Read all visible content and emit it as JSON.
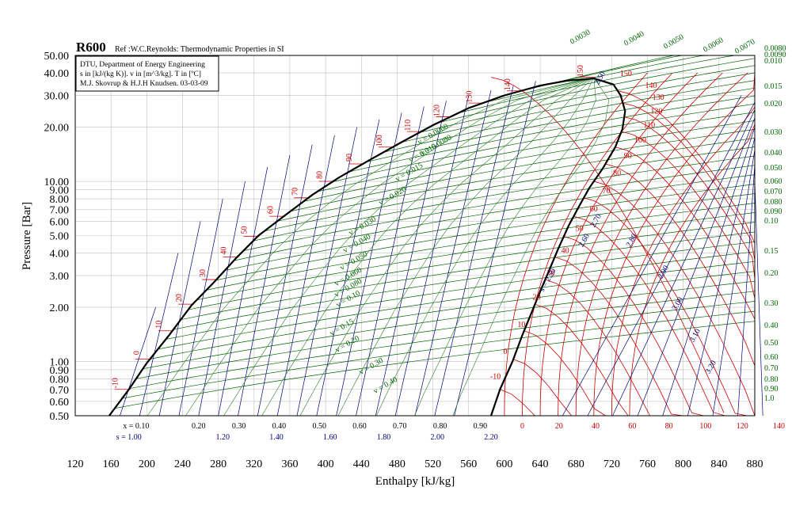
{
  "chart_data": {
    "type": "line",
    "title": "R600",
    "subtitle": "Ref :W.C.Reynolds: Thermodynamic Properties in SI",
    "info_lines": [
      "DTU, Department of Energy Engineering",
      "s in [kJ/(kg K)]. v in [m^3/kg]. T in [ºC]",
      "M.J. Skovrup & H.J.H Knudsen. 03-03-09"
    ],
    "xlabel": "Enthalpy [kJ/kg]",
    "ylabel": "Pressure [Bar]",
    "xlim": [
      120,
      880
    ],
    "ylim": [
      0.5,
      50
    ],
    "y_scale": "log",
    "x_ticks": [
      120,
      160,
      200,
      240,
      280,
      320,
      360,
      400,
      440,
      480,
      520,
      560,
      600,
      640,
      680,
      720,
      760,
      800,
      840,
      880
    ],
    "y_ticks": [
      {
        "v": 0.5,
        "label": "0.50"
      },
      {
        "v": 0.6,
        "label": "0.60"
      },
      {
        "v": 0.7,
        "label": "0.70"
      },
      {
        "v": 0.8,
        "label": "0.80"
      },
      {
        "v": 0.9,
        "label": "0.90"
      },
      {
        "v": 1.0,
        "label": "1.00"
      },
      {
        "v": 2.0,
        "label": "2.00"
      },
      {
        "v": 3.0,
        "label": "3.00"
      },
      {
        "v": 4.0,
        "label": "4.00"
      },
      {
        "v": 5.0,
        "label": "5.00"
      },
      {
        "v": 6.0,
        "label": "6.00"
      },
      {
        "v": 7.0,
        "label": "7.00"
      },
      {
        "v": 8.0,
        "label": "8.00"
      },
      {
        "v": 9.0,
        "label": "9.00"
      },
      {
        "v": 10.0,
        "label": "10.00"
      },
      {
        "v": 20.0,
        "label": "20.00"
      },
      {
        "v": 30.0,
        "label": "30.00"
      },
      {
        "v": 40.0,
        "label": "40.00"
      },
      {
        "v": 50.0,
        "label": "50.00"
      }
    ],
    "grid": true,
    "saturation_liquid": [
      {
        "h": 158,
        "p": 0.5
      },
      {
        "h": 180,
        "p": 0.7
      },
      {
        "h": 200,
        "p": 0.98
      },
      {
        "h": 225,
        "p": 1.4
      },
      {
        "h": 250,
        "p": 2.05
      },
      {
        "h": 275,
        "p": 2.75
      },
      {
        "h": 300,
        "p": 3.75
      },
      {
        "h": 325,
        "p": 5.0
      },
      {
        "h": 355,
        "p": 6.5
      },
      {
        "h": 385,
        "p": 8.4
      },
      {
        "h": 415,
        "p": 10.5
      },
      {
        "h": 450,
        "p": 13.2
      },
      {
        "h": 485,
        "p": 16.5
      },
      {
        "h": 520,
        "p": 20.5
      },
      {
        "h": 560,
        "p": 25.5
      },
      {
        "h": 600,
        "p": 30.0
      },
      {
        "h": 640,
        "p": 34.0
      },
      {
        "h": 670,
        "p": 36.2
      },
      {
        "h": 700,
        "p": 37.3
      }
    ],
    "saturation_vapor": [
      {
        "h": 700,
        "p": 37.3
      },
      {
        "h": 722,
        "p": 34.5
      },
      {
        "h": 730,
        "p": 30.0
      },
      {
        "h": 735,
        "p": 24.5
      },
      {
        "h": 732,
        "p": 19.5
      },
      {
        "h": 724,
        "p": 15.5
      },
      {
        "h": 710,
        "p": 11.8
      },
      {
        "h": 695,
        "p": 9.2
      },
      {
        "h": 683,
        "p": 7.2
      },
      {
        "h": 672,
        "p": 5.7
      },
      {
        "h": 660,
        "p": 4.2
      },
      {
        "h": 650,
        "p": 3.2
      },
      {
        "h": 640,
        "p": 2.45
      },
      {
        "h": 630,
        "p": 1.85
      },
      {
        "h": 620,
        "p": 1.4
      },
      {
        "h": 609,
        "p": 1.0
      },
      {
        "h": 595,
        "p": 0.7
      },
      {
        "h": 585,
        "p": 0.5
      }
    ],
    "isotherms_sat": [
      {
        "T": "-10",
        "h": 178,
        "p": 0.7
      },
      {
        "T": "0",
        "h": 200,
        "p": 1.03
      },
      {
        "T": "10",
        "h": 222,
        "p": 1.48
      },
      {
        "T": "20",
        "h": 245,
        "p": 2.08
      },
      {
        "T": "30",
        "h": 270,
        "p": 2.85
      },
      {
        "T": "40",
        "h": 295,
        "p": 3.8
      },
      {
        "T": "50",
        "h": 322,
        "p": 4.95
      },
      {
        "T": "60",
        "h": 350,
        "p": 6.4
      },
      {
        "T": "70",
        "h": 378,
        "p": 8.1
      },
      {
        "T": "80",
        "h": 405,
        "p": 10.0
      },
      {
        "T": "90",
        "h": 438,
        "p": 12.5
      },
      {
        "T": "100",
        "h": 470,
        "p": 15.5
      },
      {
        "T": "110",
        "h": 505,
        "p": 18.9
      },
      {
        "T": "120",
        "h": 540,
        "p": 22.8
      },
      {
        "T": "130",
        "h": 580,
        "p": 27.2
      },
      {
        "T": "140",
        "h": 620,
        "p": 31.8
      },
      {
        "T": "150",
        "h": 668,
        "p": 37.8
      }
    ],
    "isotherm_labels_right": [
      {
        "T": "-10",
        "h": 590,
        "p": 0.8
      },
      {
        "T": "0",
        "h": 601,
        "p": 1.1
      },
      {
        "T": "10",
        "h": 619,
        "p": 1.55
      },
      {
        "T": "20",
        "h": 636,
        "p": 2.2
      },
      {
        "T": "30",
        "h": 652,
        "p": 3.0
      },
      {
        "T": "40",
        "h": 668,
        "p": 4.0
      },
      {
        "T": "50",
        "h": 684,
        "p": 5.3
      },
      {
        "T": "60",
        "h": 700,
        "p": 6.8
      },
      {
        "T": "70",
        "h": 714,
        "p": 8.6
      },
      {
        "T": "80",
        "h": 726,
        "p": 10.8
      },
      {
        "T": "90",
        "h": 738,
        "p": 13.4
      },
      {
        "T": "100",
        "h": 752,
        "p": 16.4
      },
      {
        "T": "110",
        "h": 762,
        "p": 19.9
      },
      {
        "T": "120",
        "h": 770,
        "p": 23.8
      },
      {
        "T": "130",
        "h": 772,
        "p": 28.3
      },
      {
        "T": "140",
        "h": 764,
        "p": 33.0
      },
      {
        "T": "150",
        "h": 736,
        "p": 38.5
      }
    ],
    "isotherm_labels_bottom": [
      "0",
      "20",
      "40",
      "60",
      "80",
      "100",
      "120",
      "140"
    ],
    "quality_labels": [
      "x = 0.10",
      "0.20",
      "0.30",
      "0.40",
      "0.50",
      "0.60",
      "0.70",
      "0.80",
      "0.90"
    ],
    "entropy_labels_bottom": [
      "s = 1.00",
      "1.20",
      "1.40",
      "1.60",
      "1.80",
      "2.00",
      "2.20"
    ],
    "entropy_labels_vapor": [
      "s = 2.50",
      "2.50",
      "2.60",
      "2.70",
      "2.80",
      "2.90",
      "3.00",
      "3.10",
      "3.20"
    ],
    "volume_labels_right": [
      "0.0080",
      "0.0090",
      "0.010",
      "0.015",
      "0.020",
      "0.030",
      "0.040",
      "0.050",
      "0.060",
      "0.070",
      "0.080",
      "0.090",
      "0.10",
      "0.15",
      "0.20",
      "0.30",
      "0.40",
      "0.50",
      "0.60",
      "0.70",
      "0.80",
      "0.90",
      "1.0"
    ],
    "volume_labels_top": [
      "0.0030",
      "0.0040",
      "0.0050",
      "0.0060",
      "0.0070"
    ],
    "volume_labels_inside": [
      "v = 0.0060",
      "v = 0.0080",
      "v = 0.010",
      "v = 0.015",
      "v = 0.020",
      "v = 0.030",
      "v = 0.040",
      "v = 0.050",
      "v = 0.060",
      "v = 0.080",
      "v = 0.10",
      "v = 0.15",
      "v = 0.20",
      "v = 0.30",
      "v = 0.40"
    ],
    "colors": {
      "isotherm": "#cc0000",
      "isentrope": "#000080",
      "isochore": "#006600",
      "saturation": "#000000",
      "grid": "#c0c0c0"
    }
  }
}
